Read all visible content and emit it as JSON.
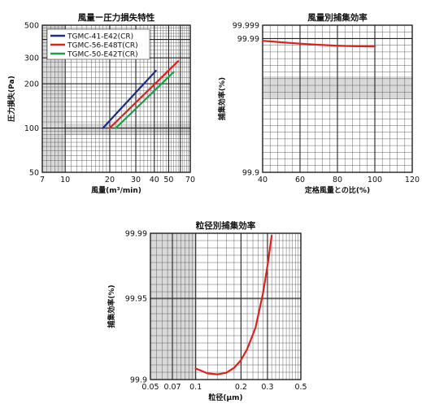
{
  "chart_data": [
    {
      "type": "line",
      "title": "風量ー圧力損失特性",
      "xlabel": "風量(m³/min)",
      "ylabel": "圧力損失(Pa)",
      "xscale": "log",
      "yscale": "log",
      "xlim": [
        7,
        70
      ],
      "ylim": [
        50,
        500
      ],
      "xticks": [
        7,
        10,
        20,
        30,
        40,
        50,
        70
      ],
      "yticks": [
        50,
        100,
        200,
        300,
        500
      ],
      "grid": true,
      "legend_position": "top-left",
      "series": [
        {
          "name": "TGMC-41-E42(CR)",
          "color": "#1f2a8a",
          "x": [
            18,
            41
          ],
          "y": [
            100,
            245
          ]
        },
        {
          "name": "TGMC-56-E48T(CR)",
          "color": "#e0201b",
          "x": [
            20,
            58
          ],
          "y": [
            100,
            285
          ]
        },
        {
          "name": "TGMC-50-E42T(CR)",
          "color": "#1aa040",
          "x": [
            22,
            54
          ],
          "y": [
            100,
            240
          ]
        }
      ]
    },
    {
      "type": "line",
      "title": "風量別捕集効率",
      "xlabel": "定格風量との比(%)",
      "ylabel": "捕集効率(%)",
      "xlim": [
        40,
        120
      ],
      "ylim": [
        99.9,
        99.999
      ],
      "xticks": [
        40,
        60,
        80,
        100,
        120
      ],
      "yticks": [
        99.9,
        99.99,
        99.999
      ],
      "grid": true,
      "series": [
        {
          "name": "",
          "color": "#e0201b",
          "x": [
            40,
            50,
            60,
            70,
            80,
            90,
            100
          ],
          "y": [
            99.9885,
            99.9875,
            99.9866,
            99.9858,
            99.9852,
            99.9848,
            99.9847
          ]
        }
      ]
    },
    {
      "type": "line",
      "title": "粒径別捕集効率",
      "xlabel": "粒径(μm)",
      "ylabel": "捕集効率(%)",
      "xscale": "log",
      "xlim": [
        0.05,
        0.5
      ],
      "ylim": [
        99.9,
        99.99
      ],
      "xticks": [
        0.05,
        0.07,
        0.1,
        0.2,
        0.3,
        0.5
      ],
      "yticks": [
        99.9,
        99.95,
        99.99
      ],
      "grid": true,
      "series": [
        {
          "name": "",
          "color": "#e0201b",
          "x": [
            0.1,
            0.12,
            0.14,
            0.16,
            0.18,
            0.2,
            0.22,
            0.25,
            0.28,
            0.3,
            0.32
          ],
          "y": [
            99.9068,
            99.9038,
            99.9032,
            99.9042,
            99.9072,
            99.912,
            99.9188,
            99.932,
            99.953,
            99.97,
            99.9885
          ]
        }
      ]
    }
  ]
}
